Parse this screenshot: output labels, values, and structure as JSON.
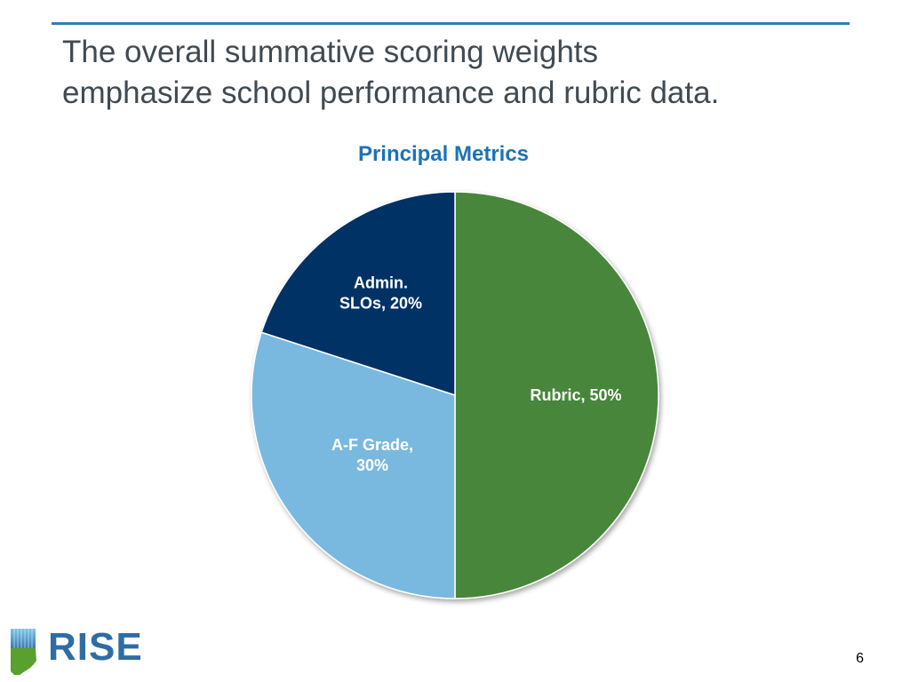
{
  "slide": {
    "title_lines": [
      "The overall summative scoring weights",
      "emphasize school performance and rubric data."
    ],
    "page_number": "6"
  },
  "logo": {
    "text": "RISE"
  },
  "colors": {
    "title_rule": "#2e7fb8",
    "chart_title": "#1a73b8"
  },
  "chart_data": {
    "type": "pie",
    "title": "Principal Metrics",
    "slices": [
      {
        "label_lines": [
          "Rubric, 50%"
        ],
        "value": 50,
        "color": "#47863a"
      },
      {
        "label_lines": [
          "A-F Grade,",
          "30%"
        ],
        "value": 30,
        "color": "#79b9e0"
      },
      {
        "label_lines": [
          "Admin.",
          "SLOs, 20%"
        ],
        "value": 20,
        "color": "#003366"
      }
    ],
    "start_direction": "12 o'clock",
    "order": "clockwise",
    "legend": "none"
  }
}
